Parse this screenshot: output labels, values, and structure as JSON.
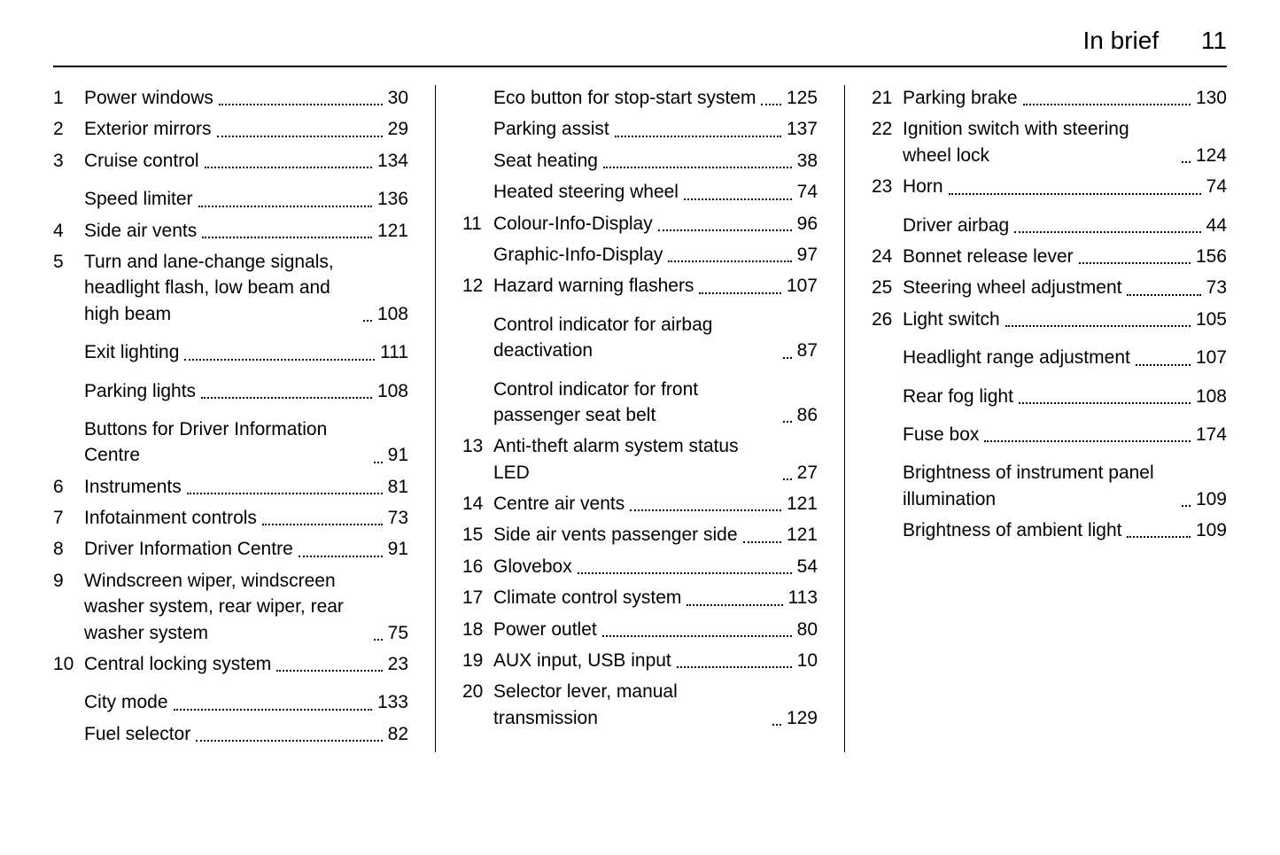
{
  "header": {
    "title": "In brief",
    "page": "11"
  },
  "columns": [
    [
      {
        "num": "1",
        "label": "Power windows",
        "page": "30"
      },
      {
        "num": "2",
        "label": "Exterior mirrors",
        "page": "29"
      },
      {
        "num": "3",
        "label": "Cruise control",
        "page": "134"
      },
      {
        "num": "",
        "label": "Speed limiter",
        "page": "136",
        "sub": true
      },
      {
        "num": "4",
        "label": "Side air vents",
        "page": "121"
      },
      {
        "num": "5",
        "label": "Turn and lane-change signals, headlight flash, low beam and high beam",
        "page": "108"
      },
      {
        "num": "",
        "label": "Exit lighting",
        "page": "111",
        "sub": true
      },
      {
        "num": "",
        "label": "Parking lights",
        "page": "108",
        "sub": true
      },
      {
        "num": "",
        "label": "Buttons for Driver Information Centre",
        "page": "91",
        "sub": true
      },
      {
        "num": "6",
        "label": "Instruments",
        "page": "81"
      },
      {
        "num": "7",
        "label": "Infotainment controls",
        "page": "73"
      },
      {
        "num": "8",
        "label": "Driver Information Centre",
        "page": "91"
      },
      {
        "num": "9",
        "label": "Windscreen wiper, windscreen washer system, rear wiper, rear washer system",
        "page": "75"
      },
      {
        "num": "10",
        "label": "Central locking system",
        "page": "23"
      },
      {
        "num": "",
        "label": "City mode",
        "page": "133",
        "sub": true
      },
      {
        "num": "",
        "label": "Fuel selector",
        "page": "82",
        "subcont": true
      }
    ],
    [
      {
        "num": "",
        "label": "Eco button for stop-start system",
        "page": "125"
      },
      {
        "num": "",
        "label": "Parking assist",
        "page": "137",
        "subcont": true
      },
      {
        "num": "",
        "label": "Seat heating",
        "page": "38",
        "subcont": true
      },
      {
        "num": "",
        "label": "Heated steering wheel",
        "page": "74",
        "subcont": true
      },
      {
        "num": "11",
        "label": "Colour-Info-Display",
        "page": "96"
      },
      {
        "num": "",
        "label": "Graphic-Info-Display",
        "page": "97",
        "subcont": true
      },
      {
        "num": "12",
        "label": "Hazard warning flashers",
        "page": "107"
      },
      {
        "num": "",
        "label": "Control indicator for airbag deactivation",
        "page": "87",
        "sub": true
      },
      {
        "num": "",
        "label": "Control indicator for front passenger seat belt",
        "page": "86",
        "sub": true
      },
      {
        "num": "13",
        "label": "Anti-theft alarm system status LED",
        "page": "27"
      },
      {
        "num": "14",
        "label": "Centre air vents",
        "page": "121"
      },
      {
        "num": "15",
        "label": "Side air vents passenger side",
        "page": "121"
      },
      {
        "num": "16",
        "label": "Glovebox",
        "page": "54"
      },
      {
        "num": "17",
        "label": "Climate control system",
        "page": "113"
      },
      {
        "num": "18",
        "label": "Power outlet",
        "page": "80"
      },
      {
        "num": "19",
        "label": "AUX input, USB input",
        "page": "10"
      },
      {
        "num": "20",
        "label": "Selector lever, manual transmission",
        "page": "129"
      }
    ],
    [
      {
        "num": "21",
        "label": "Parking brake",
        "page": "130"
      },
      {
        "num": "22",
        "label": "Ignition switch with steering wheel lock",
        "page": "124"
      },
      {
        "num": "23",
        "label": "Horn",
        "page": "74"
      },
      {
        "num": "",
        "label": "Driver airbag",
        "page": "44",
        "sub": true
      },
      {
        "num": "24",
        "label": "Bonnet release lever",
        "page": "156"
      },
      {
        "num": "25",
        "label": "Steering wheel adjustment",
        "page": "73"
      },
      {
        "num": "26",
        "label": "Light switch",
        "page": "105"
      },
      {
        "num": "",
        "label": "Headlight range adjustment",
        "page": "107",
        "sub": true
      },
      {
        "num": "",
        "label": "Rear fog light",
        "page": "108",
        "sub": true
      },
      {
        "num": "",
        "label": "Fuse box",
        "page": "174",
        "sub": true
      },
      {
        "num": "",
        "label": "Brightness of instrument panel illumination",
        "page": "109",
        "sub": true
      },
      {
        "num": "",
        "label": "Brightness of ambient light",
        "page": "109",
        "subcont": true
      }
    ]
  ]
}
